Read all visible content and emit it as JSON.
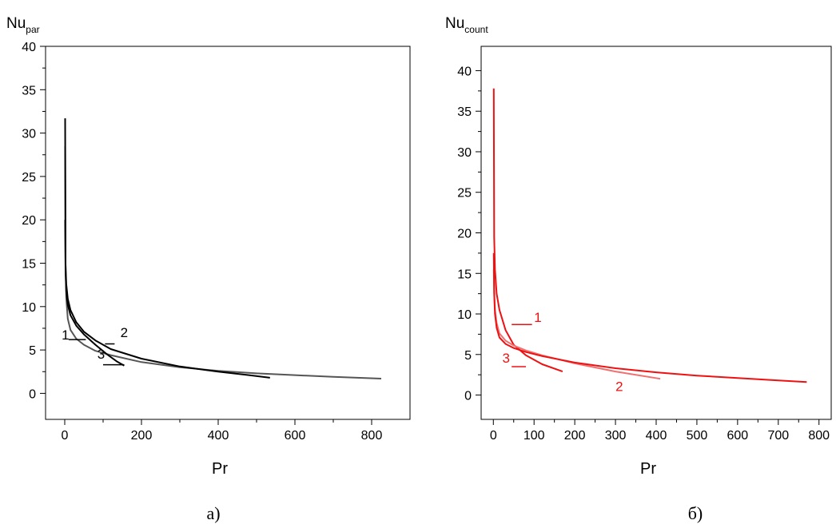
{
  "chart_data": [
    {
      "type": "line",
      "caption": "а)",
      "ylabel_main": "Nu",
      "ylabel_sub": "par",
      "xlabel": "Pr",
      "xlim": [
        -50,
        900
      ],
      "ylim": [
        -3,
        40
      ],
      "xticks": [
        0,
        200,
        400,
        600,
        800
      ],
      "yticks": [
        0,
        5,
        10,
        15,
        20,
        25,
        30,
        35,
        40
      ],
      "series": [
        {
          "name": "1",
          "color": "#555555",
          "x": [
            1,
            2,
            4,
            8,
            15,
            30,
            50,
            80,
            120,
            200,
            300,
            400,
            500,
            600,
            700,
            825
          ],
          "y": [
            28.5,
            15,
            11,
            8.6,
            7.3,
            6.3,
            5.6,
            4.9,
            4.4,
            3.6,
            3.0,
            2.6,
            2.3,
            2.1,
            1.9,
            1.7
          ]
        },
        {
          "name": "2",
          "color": "#000000",
          "x": [
            1,
            2,
            4,
            8,
            15,
            30,
            50,
            80,
            120,
            200,
            300,
            400,
            480,
            535
          ],
          "y": [
            31.7,
            14.8,
            12.6,
            10.9,
            9.6,
            8.2,
            7.1,
            6.1,
            5.1,
            4.0,
            3.1,
            2.5,
            2.1,
            1.8
          ]
        },
        {
          "name": "3",
          "color": "#000000",
          "x": [
            1,
            2,
            4,
            8,
            15,
            30,
            50,
            80,
            110,
            135,
            155
          ],
          "y": [
            20,
            14,
            11.8,
            10.2,
            9.0,
            7.8,
            6.8,
            5.6,
            4.5,
            3.7,
            3.2
          ]
        }
      ],
      "labels": [
        {
          "text": "1",
          "x": -8,
          "y": 6.2,
          "leader_x": [
            10,
            55
          ],
          "leader_y": [
            6.2,
            6.2
          ]
        },
        {
          "text": "2",
          "x": 145,
          "y": 6.5,
          "leader_x": [
            105,
            130
          ],
          "leader_y": [
            5.7,
            5.7
          ]
        },
        {
          "text": "3",
          "x": 85,
          "y": 4.0,
          "leader_x": [
            100,
            155
          ],
          "leader_y": [
            3.3,
            3.3
          ]
        }
      ]
    },
    {
      "type": "line",
      "caption": "б)",
      "ylabel_main": "Nu",
      "ylabel_sub": "count",
      "xlabel": "Pr",
      "xlim": [
        -30,
        830
      ],
      "ylim": [
        -3,
        43
      ],
      "xticks": [
        0,
        100,
        200,
        300,
        400,
        500,
        600,
        700,
        800
      ],
      "yticks": [
        0,
        5,
        10,
        15,
        20,
        25,
        30,
        35,
        40
      ],
      "series": [
        {
          "name": "1",
          "color": "#ee1111",
          "x": [
            1,
            2,
            4,
            8,
            15,
            30,
            50,
            80,
            120,
            170
          ],
          "y": [
            37.8,
            19.5,
            15.5,
            12.5,
            10.5,
            8.0,
            6.2,
            4.9,
            3.8,
            2.9
          ]
        },
        {
          "name": "2",
          "color": "#f07070",
          "x": [
            1,
            2,
            4,
            8,
            15,
            30,
            50,
            80,
            120,
            200,
            300,
            410
          ],
          "y": [
            15.5,
            12.8,
            10.5,
            8.9,
            7.6,
            6.7,
            6.1,
            5.5,
            4.9,
            3.9,
            2.9,
            2.0
          ]
        },
        {
          "name": "3",
          "color": "#ee1111",
          "x": [
            1,
            2,
            4,
            8,
            15,
            30,
            50,
            80,
            120,
            200,
            300,
            400,
            500,
            600,
            700,
            770
          ],
          "y": [
            17.5,
            12.5,
            10.0,
            8.3,
            7.1,
            6.3,
            5.8,
            5.3,
            4.8,
            4.0,
            3.3,
            2.8,
            2.4,
            2.1,
            1.8,
            1.6
          ]
        }
      ],
      "labels": [
        {
          "text": "1",
          "x": 100,
          "y": 9.0,
          "leader_x": [
            45,
            95
          ],
          "leader_y": [
            8.7,
            8.7
          ]
        },
        {
          "text": "2",
          "x": 300,
          "y": 0.5,
          "leader_x": [],
          "leader_y": []
        },
        {
          "text": "3",
          "x": 22,
          "y": 4.0,
          "leader_x": [
            45,
            80
          ],
          "leader_y": [
            3.5,
            3.5
          ]
        }
      ]
    }
  ]
}
